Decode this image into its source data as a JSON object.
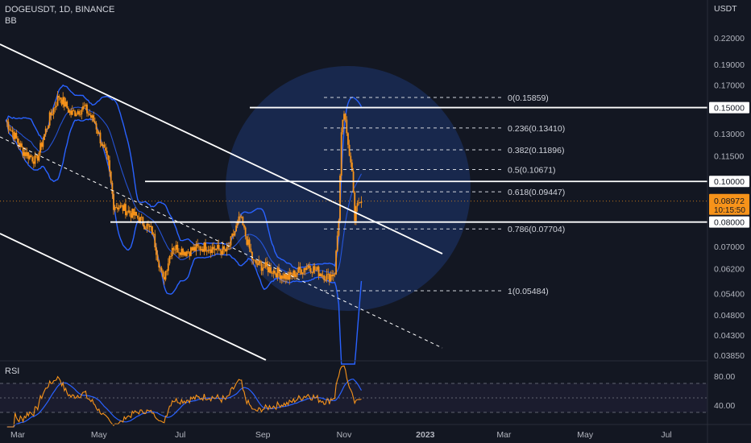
{
  "header": {
    "symbol_line": "DOGEUSDT, 1D, BINANCE",
    "indicator_bb": "BB",
    "indicator_rsi": "RSI",
    "currency": "USDT"
  },
  "chart_data": {
    "type": "candlestick",
    "symbol": "DOGEUSDT",
    "interval": "1D",
    "exchange": "BINANCE",
    "price_scale": "log",
    "ylim": [
      0.0385,
      0.245
    ],
    "y_ticks": [
      "0.22000",
      "0.19000",
      "0.17000",
      "0.15000",
      "0.13000",
      "0.11500",
      "0.10000",
      "0.08000",
      "0.07000",
      "0.06200",
      "0.05400",
      "0.04800",
      "0.04300",
      "0.03850"
    ],
    "x_ticks": [
      "Mar",
      "May",
      "Jul",
      "Sep",
      "Nov",
      "2023",
      "Mar",
      "May",
      "Jul"
    ],
    "current_price": {
      "value": 0.08972,
      "label": "0.08972",
      "countdown": "10:15:50",
      "color": "#f7931a"
    },
    "horizontal_levels": [
      {
        "value": 0.15,
        "label": "0.15000"
      },
      {
        "value": 0.1,
        "label": "0.10000"
      },
      {
        "value": 0.08,
        "label": "0.08000"
      }
    ],
    "fibonacci": [
      {
        "ratio": "0",
        "value": 0.15859,
        "label": "0(0.15859)"
      },
      {
        "ratio": "0.236",
        "value": 0.1341,
        "label": "0.236(0.13410)"
      },
      {
        "ratio": "0.382",
        "value": 0.11896,
        "label": "0.382(0.11896)"
      },
      {
        "ratio": "0.5",
        "value": 0.10671,
        "label": "0.5(0.10671)"
      },
      {
        "ratio": "0.618",
        "value": 0.09447,
        "label": "0.618(0.09447)"
      },
      {
        "ratio": "0.786",
        "value": 0.07704,
        "label": "0.786(0.07704)"
      },
      {
        "ratio": "1",
        "value": 0.05484,
        "label": "1(0.05484)"
      }
    ],
    "price_series": [
      {
        "date": "2022-02-20",
        "close": 0.14
      },
      {
        "date": "2022-03-05",
        "close": 0.118
      },
      {
        "date": "2022-03-15",
        "close": 0.112
      },
      {
        "date": "2022-03-25",
        "close": 0.142
      },
      {
        "date": "2022-04-01",
        "close": 0.16
      },
      {
        "date": "2022-04-10",
        "close": 0.145
      },
      {
        "date": "2022-04-20",
        "close": 0.15
      },
      {
        "date": "2022-04-28",
        "close": 0.138
      },
      {
        "date": "2022-05-08",
        "close": 0.11
      },
      {
        "date": "2022-05-12",
        "close": 0.088
      },
      {
        "date": "2022-05-20",
        "close": 0.086
      },
      {
        "date": "2022-05-30",
        "close": 0.082
      },
      {
        "date": "2022-06-10",
        "close": 0.076
      },
      {
        "date": "2022-06-18",
        "close": 0.058
      },
      {
        "date": "2022-06-25",
        "close": 0.07
      },
      {
        "date": "2022-07-05",
        "close": 0.068
      },
      {
        "date": "2022-07-20",
        "close": 0.07
      },
      {
        "date": "2022-08-05",
        "close": 0.068
      },
      {
        "date": "2022-08-15",
        "close": 0.082
      },
      {
        "date": "2022-08-25",
        "close": 0.064
      },
      {
        "date": "2022-09-05",
        "close": 0.062
      },
      {
        "date": "2022-09-20",
        "close": 0.059
      },
      {
        "date": "2022-10-05",
        "close": 0.063
      },
      {
        "date": "2022-10-20",
        "close": 0.059
      },
      {
        "date": "2022-10-25",
        "close": 0.061
      },
      {
        "date": "2022-10-28",
        "close": 0.082
      },
      {
        "date": "2022-10-30",
        "close": 0.128
      },
      {
        "date": "2022-11-01",
        "close": 0.146
      },
      {
        "date": "2022-11-03",
        "close": 0.128
      },
      {
        "date": "2022-11-05",
        "close": 0.118
      },
      {
        "date": "2022-11-07",
        "close": 0.108
      },
      {
        "date": "2022-11-09",
        "close": 0.08
      },
      {
        "date": "2022-11-11",
        "close": 0.09
      },
      {
        "date": "2022-11-14",
        "close": 0.08972
      }
    ],
    "rsi": {
      "levels": [
        80,
        70,
        50,
        30
      ],
      "tick_labels": [
        "80.00",
        "40.00"
      ]
    },
    "colors": {
      "background": "#131722",
      "candle": "#f7931a",
      "bollinger": "#2962ff",
      "circle": "#1a2b55",
      "trend_lines": "#ffffff",
      "rsi_line": "#f7931a",
      "rsi_ma": "#2962ff"
    }
  }
}
